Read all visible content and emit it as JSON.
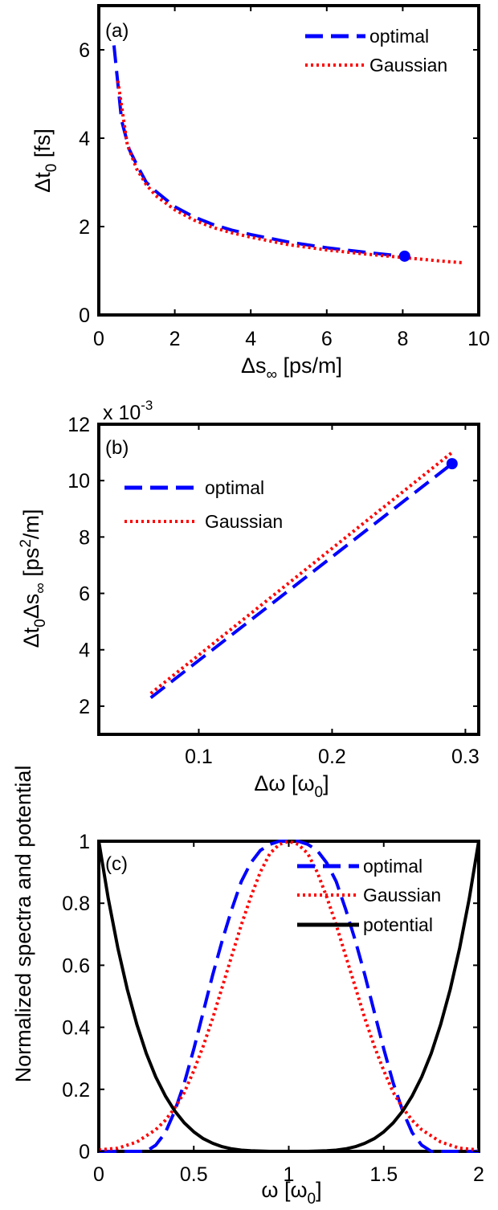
{
  "chart_data": [
    {
      "type": "line",
      "panel_label": "(a)",
      "xlabel": "Δs∞ [ps/m]",
      "ylabel": "Δt0 [fs]",
      "xlim": [
        0,
        10
      ],
      "ylim": [
        0,
        7
      ],
      "xticks": [
        "0",
        "2",
        "4",
        "6",
        "8",
        "10"
      ],
      "yticks": [
        "0",
        "2",
        "4",
        "6"
      ],
      "legend_position": "top-right",
      "series": [
        {
          "name": "optimal",
          "color": "#0000ff",
          "style": "dashed",
          "x": [
            0.4,
            0.6,
            0.8,
            1.0,
            1.25,
            1.5,
            2.0,
            2.5,
            3.0,
            3.5,
            4.0,
            5.0,
            6.0,
            7.0,
            8.0
          ],
          "y": [
            6.1,
            4.4,
            3.75,
            3.4,
            3.0,
            2.8,
            2.45,
            2.22,
            2.05,
            1.92,
            1.82,
            1.65,
            1.52,
            1.42,
            1.33
          ]
        },
        {
          "name": "Gaussian",
          "color": "#ff0000",
          "style": "dotted",
          "x": [
            0.5,
            0.75,
            1.0,
            1.25,
            1.5,
            2.0,
            2.5,
            3.0,
            3.5,
            4.0,
            5.0,
            6.0,
            7.0,
            8.0,
            9.0,
            9.6
          ],
          "y": [
            5.3,
            3.85,
            3.3,
            2.95,
            2.7,
            2.38,
            2.15,
            1.98,
            1.86,
            1.76,
            1.59,
            1.47,
            1.38,
            1.3,
            1.22,
            1.18
          ]
        }
      ],
      "markers": [
        {
          "x": 8.05,
          "y": 1.33,
          "color": "#0000ff"
        }
      ]
    },
    {
      "type": "line",
      "panel_label": "(b)",
      "xlabel": "Δω [ω0]",
      "ylabel": "Δt0Δs∞ [ps²/m]",
      "y_multiplier": "x 10",
      "y_multiplier_exponent": "-3",
      "xlim": [
        0.025,
        0.31
      ],
      "ylim": [
        1,
        12
      ],
      "xticks": [
        "0.1",
        "0.2",
        "0.3"
      ],
      "yticks": [
        "2",
        "4",
        "6",
        "8",
        "10",
        "12"
      ],
      "legend_position": "top-left",
      "series": [
        {
          "name": "optimal",
          "color": "#0000ff",
          "style": "dashed",
          "x": [
            0.064,
            0.29
          ],
          "y": [
            2.3,
            10.6
          ]
        },
        {
          "name": "Gaussian",
          "color": "#ff0000",
          "style": "dotted",
          "x": [
            0.064,
            0.29
          ],
          "y": [
            2.45,
            11.0
          ]
        }
      ],
      "markers": [
        {
          "x": 0.29,
          "y": 10.6,
          "color": "#0000ff"
        }
      ]
    },
    {
      "type": "line",
      "panel_label": "(c)",
      "xlabel": "ω [ω0]",
      "ylabel": "Normalized spectra and potential",
      "xlim": [
        0,
        2
      ],
      "ylim": [
        0,
        1
      ],
      "xticks": [
        "0",
        "0.5",
        "1",
        "1.5",
        "2"
      ],
      "yticks": [
        "0",
        "0.2",
        "0.4",
        "0.6",
        "0.8",
        "1"
      ],
      "legend_position": "top-right",
      "series": [
        {
          "name": "optimal",
          "color": "#0000ff",
          "style": "dashed",
          "x": [
            0,
            0.2,
            0.25,
            0.3,
            0.35,
            0.4,
            0.45,
            0.5,
            0.55,
            0.6,
            0.65,
            0.7,
            0.75,
            0.8,
            0.85,
            0.9,
            0.95,
            1.0,
            1.05,
            1.1,
            1.15,
            1.2,
            1.25,
            1.3,
            1.35,
            1.4,
            1.45,
            1.5,
            1.55,
            1.6,
            1.65,
            1.7,
            1.75,
            1.8,
            2.0
          ],
          "y": [
            0,
            0,
            0.0,
            0.02,
            0.06,
            0.13,
            0.22,
            0.33,
            0.45,
            0.57,
            0.68,
            0.78,
            0.87,
            0.93,
            0.97,
            0.99,
            1.0,
            1.0,
            1.0,
            0.99,
            0.97,
            0.93,
            0.87,
            0.78,
            0.68,
            0.57,
            0.45,
            0.33,
            0.22,
            0.13,
            0.06,
            0.02,
            0.0,
            0,
            0
          ]
        },
        {
          "name": "Gaussian",
          "color": "#ff0000",
          "style": "dotted",
          "x": [
            0,
            0.1,
            0.2,
            0.3,
            0.35,
            0.4,
            0.45,
            0.5,
            0.55,
            0.6,
            0.65,
            0.7,
            0.75,
            0.8,
            0.85,
            0.9,
            0.95,
            1.0,
            1.05,
            1.1,
            1.15,
            1.2,
            1.25,
            1.3,
            1.35,
            1.4,
            1.45,
            1.5,
            1.55,
            1.6,
            1.65,
            1.7,
            1.8,
            1.9,
            2.0
          ],
          "y": [
            0.005,
            0.01,
            0.03,
            0.07,
            0.1,
            0.14,
            0.19,
            0.26,
            0.34,
            0.43,
            0.53,
            0.63,
            0.73,
            0.82,
            0.9,
            0.96,
            0.99,
            1.0,
            0.99,
            0.96,
            0.9,
            0.82,
            0.73,
            0.63,
            0.53,
            0.43,
            0.34,
            0.26,
            0.19,
            0.14,
            0.1,
            0.07,
            0.03,
            0.01,
            0.005
          ]
        },
        {
          "name": "potential",
          "color": "#000000",
          "style": "solid",
          "x": [
            0,
            0.05,
            0.1,
            0.15,
            0.2,
            0.25,
            0.3,
            0.35,
            0.4,
            0.45,
            0.5,
            0.55,
            0.6,
            0.65,
            0.7,
            0.75,
            0.8,
            0.85,
            0.9,
            0.95,
            1.0,
            1.05,
            1.1,
            1.15,
            1.2,
            1.25,
            1.3,
            1.35,
            1.4,
            1.45,
            1.5,
            1.55,
            1.6,
            1.65,
            1.7,
            1.75,
            1.8,
            1.85,
            1.9,
            1.95,
            2.0
          ],
          "y": [
            1.0,
            0.815,
            0.656,
            0.522,
            0.41,
            0.316,
            0.24,
            0.179,
            0.13,
            0.092,
            0.063,
            0.041,
            0.026,
            0.015,
            0.008,
            0.004,
            0.002,
            0.001,
            0.0,
            0.0,
            0.0,
            0.0,
            0.0,
            0.001,
            0.002,
            0.004,
            0.008,
            0.015,
            0.026,
            0.041,
            0.063,
            0.092,
            0.13,
            0.179,
            0.24,
            0.316,
            0.41,
            0.522,
            0.656,
            0.815,
            1.0
          ]
        }
      ]
    }
  ]
}
